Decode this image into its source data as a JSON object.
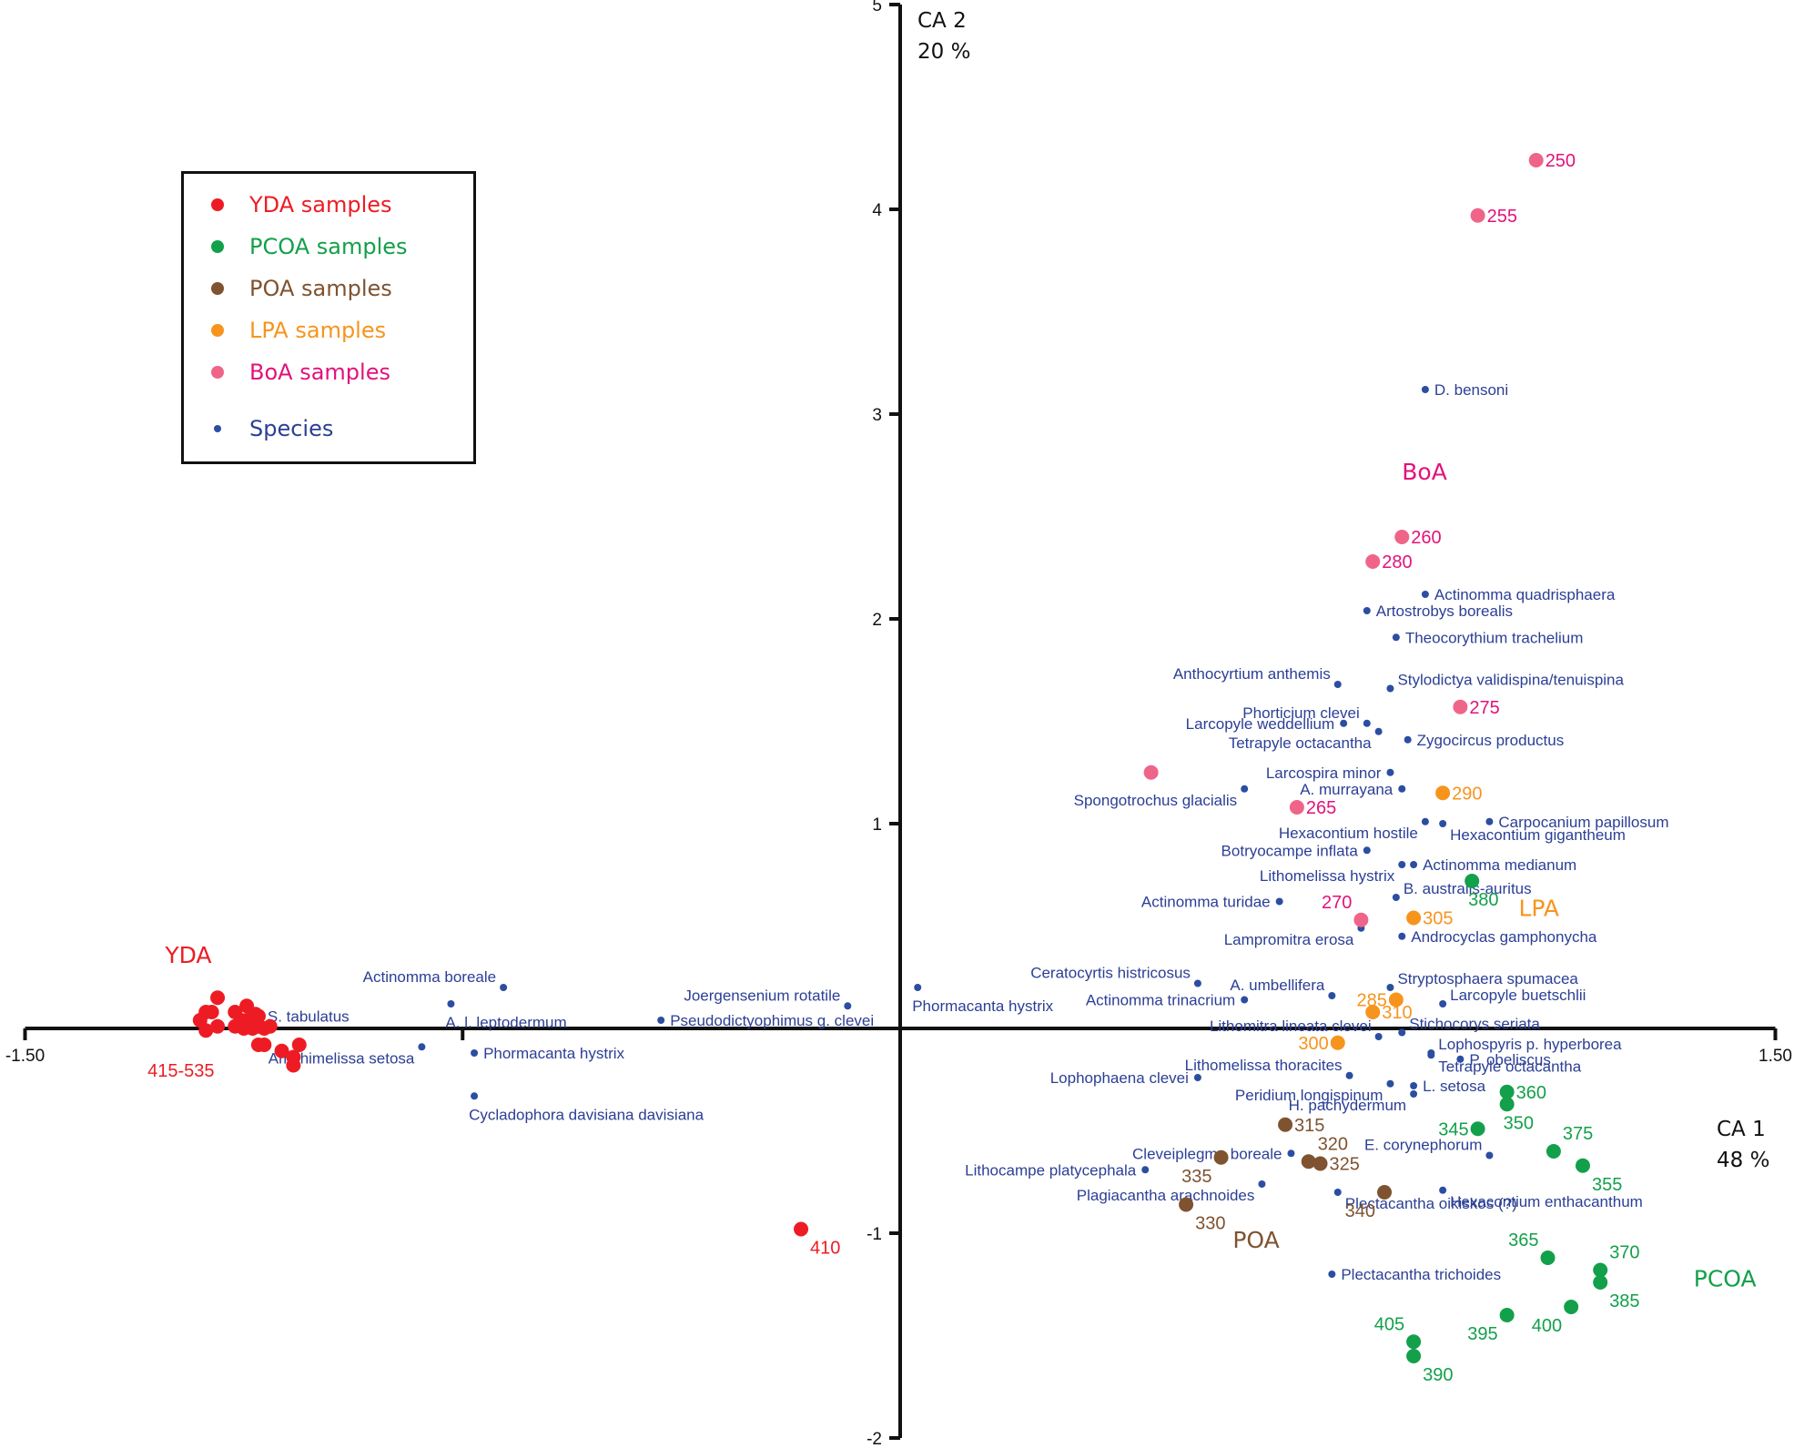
{
  "chart_data": {
    "type": "scatter",
    "title": "",
    "xlabel": "CA 1",
    "xlabel_pct": "48 %",
    "ylabel": "CA 2",
    "ylabel_pct": "20 %",
    "xlim": [
      -1.5,
      1.5
    ],
    "ylim": [
      -2,
      5
    ],
    "x_ticks": [
      {
        "value": -1.5,
        "label": "-1.50"
      },
      {
        "value": -0.75,
        "label": ""
      },
      {
        "value": 1.5,
        "label": "1.50"
      }
    ],
    "y_ticks": [
      {
        "value": 5,
        "label": "5"
      },
      {
        "value": 4,
        "label": "4"
      },
      {
        "value": 3,
        "label": "3"
      },
      {
        "value": 2,
        "label": "2"
      },
      {
        "value": 1,
        "label": "1"
      },
      {
        "value": -1,
        "label": "-1"
      },
      {
        "value": -2,
        "label": "-2"
      }
    ],
    "grid": false,
    "legend_position": "top-left",
    "legend": [
      {
        "label": "YDA samples",
        "color": "#ed1c24",
        "marker": "large"
      },
      {
        "label": "PCOA samples",
        "color": "#13a04a",
        "marker": "large"
      },
      {
        "label": "POA samples",
        "color": "#7f5330",
        "marker": "large"
      },
      {
        "label": "LPA samples",
        "color": "#f7941d",
        "marker": "large"
      },
      {
        "label": "BoA samples",
        "color": "#ef6589",
        "text_color": "#e2127b",
        "marker": "large"
      },
      {
        "label": "Species",
        "color": "#2b4ea2",
        "text_color": "#2b3f95",
        "marker": "small"
      }
    ],
    "group_labels": [
      {
        "text": "YDA",
        "x": -1.26,
        "y": 0.32,
        "color": "#ed1c24"
      },
      {
        "text": "BoA",
        "x": 0.86,
        "y": 2.68,
        "color": "#e2127b"
      },
      {
        "text": "LPA",
        "x": 1.06,
        "y": 0.55,
        "color": "#f7941d"
      },
      {
        "text": "POA",
        "x": 0.57,
        "y": -1.07,
        "color": "#7f5330"
      },
      {
        "text": "PCOA",
        "x": 1.36,
        "y": -1.26,
        "color": "#13a04a"
      }
    ],
    "sample_groups": [
      {
        "name": "YDA",
        "color": "#ed1c24",
        "text_color": "#ed1c24",
        "points": [
          {
            "label": "410",
            "x": -0.17,
            "y": -0.98,
            "lx": 1,
            "ly": 1
          },
          {
            "label": "",
            "x": -1.17,
            "y": 0.15
          },
          {
            "label": "",
            "x": -1.18,
            "y": 0.08
          },
          {
            "label": "",
            "x": -1.19,
            "y": 0.08
          },
          {
            "label": "",
            "x": -1.2,
            "y": 0.04
          },
          {
            "label": "",
            "x": -1.19,
            "y": -0.01
          },
          {
            "label": "",
            "x": -1.17,
            "y": 0.01
          },
          {
            "label": "",
            "x": -1.14,
            "y": 0.01
          },
          {
            "label": "",
            "x": -1.14,
            "y": 0.08
          },
          {
            "label": "",
            "x": -1.12,
            "y": 0.11
          },
          {
            "label": "",
            "x": -1.13,
            "y": 0.04
          },
          {
            "label": "",
            "x": -1.12,
            "y": 0.04
          },
          {
            "label": "",
            "x": -1.1,
            "y": 0.01
          },
          {
            "label": "",
            "x": -1.1,
            "y": 0.06
          },
          {
            "label": "",
            "x": -1.11,
            "y": 0.0
          },
          {
            "label": "",
            "x": -1.09,
            "y": 0.0
          },
          {
            "label": "",
            "x": -1.08,
            "y": 0.01
          },
          {
            "label": "",
            "x": -1.105,
            "y": 0.07
          },
          {
            "label": "",
            "x": -1.125,
            "y": 0.0
          },
          {
            "label": "",
            "x": -1.1,
            "y": 0.06
          },
          {
            "label": "",
            "x": -1.1,
            "y": -0.08
          },
          {
            "label": "",
            "x": -1.09,
            "y": -0.08
          },
          {
            "label": "",
            "x": -1.06,
            "y": -0.11
          },
          {
            "label": "",
            "x": -1.03,
            "y": -0.08
          },
          {
            "label": "",
            "x": -1.04,
            "y": -0.14
          },
          {
            "label": "",
            "x": -1.04,
            "y": -0.18
          }
        ],
        "cluster_label": {
          "text": "415-535",
          "x": -1.29,
          "y": -0.2
        }
      },
      {
        "name": "PCOA",
        "color": "#13a04a",
        "text_color": "#13a04a",
        "points": [
          {
            "label": "345",
            "x": 0.99,
            "y": -0.49,
            "lx": -1,
            "ly": 0
          },
          {
            "label": "350",
            "x": 1.04,
            "y": -0.37,
            "lx": 0,
            "ly": 1
          },
          {
            "label": "355",
            "x": 1.17,
            "y": -0.67,
            "lx": 1,
            "ly": 1
          },
          {
            "label": "360",
            "x": 1.04,
            "y": -0.31,
            "lx": 1,
            "ly": 0
          },
          {
            "label": "365",
            "x": 1.11,
            "y": -1.12,
            "lx": -1,
            "ly": -1
          },
          {
            "label": "370",
            "x": 1.2,
            "y": -1.18,
            "lx": 1,
            "ly": -1
          },
          {
            "label": "375",
            "x": 1.12,
            "y": -0.6,
            "lx": 1,
            "ly": -1
          },
          {
            "label": "380",
            "x": 0.98,
            "y": 0.72,
            "lx": 0,
            "ly": 1
          },
          {
            "label": "385",
            "x": 1.2,
            "y": -1.24,
            "lx": 1,
            "ly": 1
          },
          {
            "label": "390",
            "x": 0.88,
            "y": -1.6,
            "lx": 1,
            "ly": 1
          },
          {
            "label": "395",
            "x": 1.04,
            "y": -1.4,
            "lx": -1,
            "ly": 1
          },
          {
            "label": "400",
            "x": 1.15,
            "y": -1.36,
            "lx": -1,
            "ly": 1
          },
          {
            "label": "405",
            "x": 0.88,
            "y": -1.53,
            "lx": -1,
            "ly": -1
          }
        ]
      },
      {
        "name": "POA",
        "color": "#7f5330",
        "text_color": "#7f5330",
        "points": [
          {
            "label": "315",
            "x": 0.66,
            "y": -0.47,
            "lx": 1,
            "ly": 0
          },
          {
            "label": "320",
            "x": 0.7,
            "y": -0.65,
            "lx": 1,
            "ly": -1
          },
          {
            "label": "325",
            "x": 0.72,
            "y": -0.66,
            "lx": 1,
            "ly": 0
          },
          {
            "label": "330",
            "x": 0.49,
            "y": -0.86,
            "lx": 1,
            "ly": 1
          },
          {
            "label": "335",
            "x": 0.55,
            "y": -0.63,
            "lx": -1,
            "ly": 1
          },
          {
            "label": "340",
            "x": 0.83,
            "y": -0.8,
            "lx": -1,
            "ly": 1
          }
        ]
      },
      {
        "name": "LPA",
        "color": "#f7941d",
        "text_color": "#f7941d",
        "points": [
          {
            "label": "285",
            "x": 0.85,
            "y": 0.14,
            "lx": -1,
            "ly": 0
          },
          {
            "label": "290",
            "x": 0.93,
            "y": 1.15,
            "lx": 1,
            "ly": 0
          },
          {
            "label": "300",
            "x": 0.75,
            "y": -0.07,
            "lx": -1,
            "ly": 0
          },
          {
            "label": "305",
            "x": 0.88,
            "y": 0.54,
            "lx": 1,
            "ly": 0
          },
          {
            "label": "310",
            "x": 0.81,
            "y": 0.08,
            "lx": 1,
            "ly": 0
          }
        ]
      },
      {
        "name": "BoA",
        "color": "#ef6589",
        "text_color": "#e2127b",
        "points": [
          {
            "label": "250",
            "x": 1.09,
            "y": 4.24,
            "lx": 1,
            "ly": 0
          },
          {
            "label": "255",
            "x": 0.99,
            "y": 3.97,
            "lx": 1,
            "ly": 0
          },
          {
            "label": "260",
            "x": 0.86,
            "y": 2.4,
            "lx": 1,
            "ly": 0
          },
          {
            "label": "265",
            "x": 0.68,
            "y": 1.08,
            "lx": 1,
            "ly": 0
          },
          {
            "label": "270",
            "x": 0.79,
            "y": 0.53,
            "lx": -1,
            "ly": -1
          },
          {
            "label": "275",
            "x": 0.96,
            "y": 1.57,
            "lx": 1,
            "ly": 0
          },
          {
            "label": "280",
            "x": 0.81,
            "y": 2.28,
            "lx": 1,
            "ly": 0
          },
          {
            "label": "",
            "x": 0.43,
            "y": 1.25
          }
        ]
      }
    ],
    "species": {
      "color": "#2b4ea2",
      "points": [
        {
          "label": "D. bensoni",
          "x": 0.9,
          "y": 3.12,
          "side": "right"
        },
        {
          "label": "Actinomma quadrisphaera",
          "x": 0.9,
          "y": 2.12,
          "side": "right"
        },
        {
          "label": "Artostrobys borealis",
          "x": 0.8,
          "y": 2.04,
          "side": "right"
        },
        {
          "label": "Theocorythium trachelium",
          "x": 0.85,
          "y": 1.91,
          "side": "right"
        },
        {
          "label": "Anthocyrtium anthemis",
          "x": 0.75,
          "y": 1.68,
          "side": "left-up"
        },
        {
          "label": "Stylodictya validispina/tenuispina",
          "x": 0.84,
          "y": 1.66,
          "side": "right-up"
        },
        {
          "label": "Phorticium clevei",
          "x": 0.8,
          "y": 1.49,
          "side": "left-up"
        },
        {
          "label": "Larcopyle weddellium",
          "x": 0.76,
          "y": 1.49,
          "side": "left"
        },
        {
          "label": "Tetrapyle octacantha",
          "x": 0.82,
          "y": 1.45,
          "side": "left-down"
        },
        {
          "label": "Zygocircus productus",
          "x": 0.87,
          "y": 1.41,
          "side": "right"
        },
        {
          "label": "Larcospira minor",
          "x": 0.84,
          "y": 1.25,
          "side": "left"
        },
        {
          "label": "A. murrayana",
          "x": 0.86,
          "y": 1.17,
          "side": "left"
        },
        {
          "label": "Spongotrochus glacialis",
          "x": 0.59,
          "y": 1.17,
          "side": "left-down"
        },
        {
          "label": "Hexacontium hostile",
          "x": 0.9,
          "y": 1.01,
          "side": "left-down"
        },
        {
          "label": "Hexacontium gigantheum",
          "x": 0.93,
          "y": 1.0,
          "side": "right-down"
        },
        {
          "label": "Carpocanium papillosum",
          "x": 1.01,
          "y": 1.01,
          "side": "right"
        },
        {
          "label": "Botryocampe inflata",
          "x": 0.8,
          "y": 0.87,
          "side": "left"
        },
        {
          "label": "Lithomelissa hystrix",
          "x": 0.86,
          "y": 0.8,
          "side": "left-down"
        },
        {
          "label": "Actinomma medianum",
          "x": 0.88,
          "y": 0.8,
          "side": "right"
        },
        {
          "label": "B. australis-auritus",
          "x": 0.85,
          "y": 0.64,
          "side": "right-up"
        },
        {
          "label": "Actinomma turidae",
          "x": 0.65,
          "y": 0.62,
          "side": "left"
        },
        {
          "label": "Lampromitra erosa",
          "x": 0.79,
          "y": 0.49,
          "side": "left-down"
        },
        {
          "label": "Androcyclas gamphonycha",
          "x": 0.86,
          "y": 0.45,
          "side": "right"
        },
        {
          "label": "Ceratocyrtis histricosus",
          "x": 0.51,
          "y": 0.22,
          "side": "left-up"
        },
        {
          "label": "A. umbellifera",
          "x": 0.74,
          "y": 0.16,
          "side": "left-up"
        },
        {
          "label": "Actinomma trinacrium",
          "x": 0.59,
          "y": 0.14,
          "side": "left"
        },
        {
          "label": "Stryptosphaera spumacea",
          "x": 0.84,
          "y": 0.2,
          "side": "right-up"
        },
        {
          "label": "Larcopyle buetschlii",
          "x": 0.93,
          "y": 0.12,
          "side": "right-up"
        },
        {
          "label": "Stichocorys seriata",
          "x": 0.86,
          "y": -0.02,
          "side": "right-up"
        },
        {
          "label": "Lithomitra lineata clevei",
          "x": 0.82,
          "y": -0.04,
          "side": "left-up"
        },
        {
          "label": "Lophospyris p. hyperborea",
          "x": 0.91,
          "y": -0.12,
          "side": "right-up"
        },
        {
          "label": "Tetrapyle octacantha",
          "x": 0.91,
          "y": -0.13,
          "side": "right-down"
        },
        {
          "label": "P. obeliscus",
          "x": 0.96,
          "y": -0.15,
          "side": "right"
        },
        {
          "label": "Lithomelissa thoracites",
          "x": 0.77,
          "y": -0.23,
          "side": "left-up"
        },
        {
          "label": "Lophophaena clevei",
          "x": 0.51,
          "y": -0.24,
          "side": "left"
        },
        {
          "label": "Peridium longispinum",
          "x": 0.84,
          "y": -0.27,
          "side": "left-down"
        },
        {
          "label": "L. setosa",
          "x": 0.88,
          "y": -0.28,
          "side": "right"
        },
        {
          "label": "H. pachydermum",
          "x": 0.88,
          "y": -0.32,
          "side": "left-down"
        },
        {
          "label": "E. corynephorum",
          "x": 1.01,
          "y": -0.62,
          "side": "left-up"
        },
        {
          "label": "Cleveiplegma boreale",
          "x": 0.67,
          "y": -0.61,
          "side": "left"
        },
        {
          "label": "Lithocampe platycephala",
          "x": 0.42,
          "y": -0.69,
          "side": "left"
        },
        {
          "label": "Plagiacantha arachnoides",
          "x": 0.62,
          "y": -0.76,
          "side": "left-down"
        },
        {
          "label": "Plectacantha oikiskos (?)",
          "x": 0.75,
          "y": -0.8,
          "side": "right-down"
        },
        {
          "label": "Hexacontium enthacanthum",
          "x": 0.93,
          "y": -0.79,
          "side": "right-down"
        },
        {
          "label": "Plectacantha trichoides",
          "x": 0.74,
          "y": -1.2,
          "side": "right"
        },
        {
          "label": "S. tabulatus",
          "x": -1.1,
          "y": 0.06,
          "side": "right"
        },
        {
          "label": "Actinomma boreale",
          "x": -0.68,
          "y": 0.2,
          "side": "left-up"
        },
        {
          "label": "A. l. leptodermum",
          "x": -0.77,
          "y": 0.12,
          "side": "below"
        },
        {
          "label": "Amphimelissa setosa",
          "x": -0.82,
          "y": -0.09,
          "side": "left-down"
        },
        {
          "label": "Phormacanta hystrix",
          "x": -0.73,
          "y": -0.12,
          "side": "right"
        },
        {
          "label": "Cycladophora davisiana davisiana",
          "x": -0.73,
          "y": -0.33,
          "side": "below"
        },
        {
          "label": "Pseudodictyophimus g. clevei",
          "x": -0.41,
          "y": 0.04,
          "side": "right"
        },
        {
          "label": "Joergensenium rotatile",
          "x": -0.09,
          "y": 0.11,
          "side": "left-up"
        },
        {
          "label": "Phormacanta hystrix",
          "x": 0.03,
          "y": 0.2,
          "side": "below"
        }
      ]
    }
  }
}
